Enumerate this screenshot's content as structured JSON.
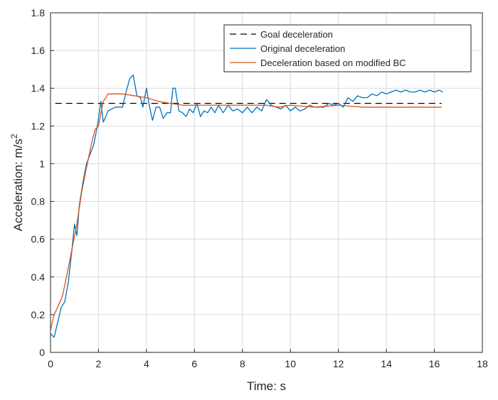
{
  "chart_data": {
    "type": "line",
    "xlabel": "Time: s",
    "ylabel_main": "Acceleration: m/s",
    "ylabel_sup": "2",
    "xlim": [
      0,
      18
    ],
    "ylim": [
      0,
      1.8
    ],
    "x_ticks": [
      0,
      2,
      4,
      6,
      8,
      10,
      12,
      14,
      16,
      18
    ],
    "y_ticks": [
      0,
      0.2,
      0.4,
      0.6,
      0.8,
      1,
      1.2,
      1.4,
      1.6,
      1.8
    ],
    "grid": true,
    "legend_position": "top-right",
    "series": [
      {
        "name": "Goal deceleration",
        "color": "#000000",
        "style": "dashed",
        "x": [
          0.2,
          16.3
        ],
        "y": [
          1.32,
          1.32
        ]
      },
      {
        "name": "Original deceleration",
        "color": "#0072BD",
        "style": "solid",
        "x": [
          0,
          0.15,
          0.3,
          0.45,
          0.6,
          0.75,
          0.9,
          1.0,
          1.1,
          1.2,
          1.35,
          1.5,
          1.65,
          1.8,
          1.95,
          2.1,
          2.2,
          2.3,
          2.4,
          2.55,
          2.7,
          2.85,
          3.0,
          3.15,
          3.3,
          3.45,
          3.6,
          3.75,
          3.85,
          4.0,
          4.1,
          4.25,
          4.4,
          4.55,
          4.7,
          4.85,
          5.0,
          5.1,
          5.2,
          5.35,
          5.5,
          5.65,
          5.8,
          5.95,
          6.1,
          6.25,
          6.4,
          6.55,
          6.7,
          6.85,
          7.0,
          7.2,
          7.4,
          7.6,
          7.8,
          8.0,
          8.2,
          8.4,
          8.6,
          8.8,
          9.0,
          9.2,
          9.4,
          9.6,
          9.8,
          10.0,
          10.2,
          10.4,
          10.6,
          10.8,
          11.0,
          11.2,
          11.4,
          11.6,
          11.8,
          12.0,
          12.2,
          12.4,
          12.6,
          12.8,
          13.0,
          13.2,
          13.4,
          13.6,
          13.8,
          14.0,
          14.2,
          14.4,
          14.6,
          14.8,
          15.0,
          15.2,
          15.4,
          15.6,
          15.8,
          16.0,
          16.2,
          16.35
        ],
        "y": [
          0.1,
          0.08,
          0.16,
          0.24,
          0.27,
          0.38,
          0.55,
          0.68,
          0.62,
          0.78,
          0.9,
          1.0,
          1.05,
          1.1,
          1.2,
          1.33,
          1.22,
          1.25,
          1.28,
          1.29,
          1.3,
          1.3,
          1.3,
          1.38,
          1.45,
          1.47,
          1.36,
          1.35,
          1.3,
          1.4,
          1.32,
          1.23,
          1.3,
          1.3,
          1.24,
          1.27,
          1.27,
          1.4,
          1.4,
          1.28,
          1.27,
          1.25,
          1.29,
          1.27,
          1.32,
          1.25,
          1.28,
          1.27,
          1.3,
          1.27,
          1.31,
          1.27,
          1.31,
          1.28,
          1.29,
          1.27,
          1.3,
          1.27,
          1.3,
          1.28,
          1.34,
          1.31,
          1.3,
          1.29,
          1.31,
          1.28,
          1.3,
          1.28,
          1.29,
          1.31,
          1.3,
          1.3,
          1.3,
          1.32,
          1.31,
          1.32,
          1.3,
          1.35,
          1.33,
          1.36,
          1.35,
          1.35,
          1.37,
          1.36,
          1.38,
          1.37,
          1.38,
          1.39,
          1.38,
          1.39,
          1.38,
          1.38,
          1.39,
          1.38,
          1.39,
          1.38,
          1.39,
          1.38
        ]
      },
      {
        "name": "Deceleration based on modified BC",
        "color": "#D95319",
        "style": "solid",
        "x": [
          0,
          0.15,
          0.3,
          0.5,
          0.7,
          0.9,
          1.1,
          1.3,
          1.5,
          1.7,
          1.85,
          2.0,
          2.2,
          2.4,
          2.6,
          3.0,
          3.5,
          4.0,
          4.5,
          5.0,
          5.5,
          6.0,
          7.0,
          8.0,
          9.0,
          9.5,
          10.0,
          11.0,
          12.0,
          13.0,
          14.0,
          15.0,
          16.3
        ],
        "y": [
          0.12,
          0.2,
          0.24,
          0.3,
          0.42,
          0.55,
          0.68,
          0.85,
          0.98,
          1.1,
          1.18,
          1.2,
          1.33,
          1.37,
          1.37,
          1.37,
          1.36,
          1.35,
          1.33,
          1.32,
          1.31,
          1.31,
          1.31,
          1.31,
          1.31,
          1.3,
          1.31,
          1.3,
          1.31,
          1.3,
          1.3,
          1.3,
          1.3
        ]
      }
    ]
  }
}
